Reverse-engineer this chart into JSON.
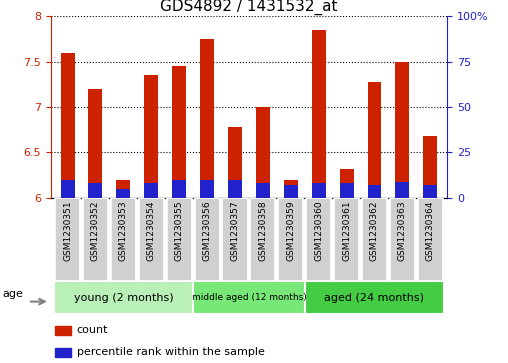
{
  "title": "GDS4892 / 1431532_at",
  "samples": [
    "GSM1230351",
    "GSM1230352",
    "GSM1230353",
    "GSM1230354",
    "GSM1230355",
    "GSM1230356",
    "GSM1230357",
    "GSM1230358",
    "GSM1230359",
    "GSM1230360",
    "GSM1230361",
    "GSM1230362",
    "GSM1230363",
    "GSM1230364"
  ],
  "count_values": [
    7.6,
    7.2,
    6.2,
    7.35,
    7.45,
    7.75,
    6.78,
    7.0,
    6.2,
    7.85,
    6.32,
    7.28,
    7.5,
    6.68
  ],
  "percentile_values": [
    10,
    8,
    5,
    8,
    10,
    10,
    10,
    8,
    7,
    8,
    8,
    7,
    9,
    7
  ],
  "ylim_left": [
    6.0,
    8.0
  ],
  "ylim_right": [
    0,
    100
  ],
  "yticks_left": [
    6.0,
    6.5,
    7.0,
    7.5,
    8.0
  ],
  "ytick_labels_left": [
    "6",
    "6.5",
    "7",
    "7.5",
    "8"
  ],
  "yticks_right": [
    0,
    25,
    50,
    75,
    100
  ],
  "ytick_labels_right": [
    "0",
    "25",
    "50",
    "75",
    "100%"
  ],
  "groups": [
    {
      "label": "young (2 months)",
      "indices": [
        0,
        1,
        2,
        3,
        4
      ],
      "color": "#b8f0b8"
    },
    {
      "label": "middle aged (12 months)",
      "indices": [
        5,
        6,
        7,
        8
      ],
      "color": "#77e877"
    },
    {
      "label": "aged (24 months)",
      "indices": [
        9,
        10,
        11,
        12,
        13
      ],
      "color": "#33cc33"
    }
  ],
  "bar_color_count": "#cc2200",
  "bar_color_percentile": "#2222cc",
  "bar_width": 0.5,
  "base_value": 6.0,
  "grid_color": "black",
  "grid_linestyle": ":",
  "age_label": "age",
  "legend_count": "count",
  "legend_percentile": "percentile rank within the sample",
  "title_fontsize": 11,
  "tick_label_fontsize": 6.5,
  "axis_color_left": "#cc2200",
  "axis_color_right": "#2222cc",
  "bg_gray": "#d0d0d0",
  "xlim": [
    -0.6,
    13.6
  ]
}
